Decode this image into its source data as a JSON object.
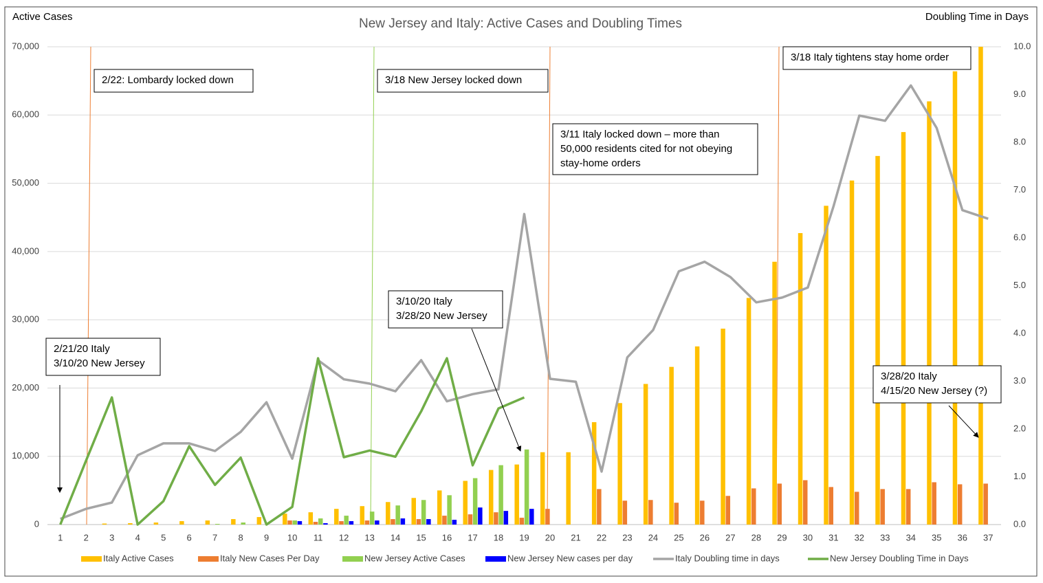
{
  "chart_data": {
    "type": "combo",
    "title": "New Jersey and Italy: Active Cases and Doubling Times",
    "y_label": "Active Cases",
    "y2_label": "Doubling Time in Days",
    "categories": [
      1,
      2,
      3,
      4,
      5,
      6,
      7,
      8,
      9,
      10,
      11,
      12,
      13,
      14,
      15,
      16,
      17,
      18,
      19,
      20,
      21,
      22,
      23,
      24,
      25,
      26,
      27,
      28,
      29,
      30,
      31,
      32,
      33,
      34,
      35,
      36,
      37
    ],
    "series": [
      {
        "name": "Italy Active Cases",
        "type": "bar",
        "color": "#FFC000",
        "values": [
          0,
          0,
          150,
          200,
          300,
          500,
          600,
          800,
          1100,
          1600,
          1800,
          2300,
          2700,
          3300,
          3900,
          5000,
          6400,
          8000,
          8800,
          10600,
          10600,
          15000,
          17800,
          20600,
          23100,
          26100,
          28700,
          33200,
          38500,
          42700,
          46700,
          50400,
          54000,
          57500,
          62000,
          66400,
          70000
        ]
      },
      {
        "name": "Italy New Cases Per Day",
        "type": "bar",
        "color": "#ED7D31",
        "values": [
          0,
          0,
          0,
          0,
          0,
          0,
          0,
          0,
          0,
          600,
          400,
          500,
          600,
          800,
          800,
          1300,
          1500,
          1800,
          1000,
          2300,
          0,
          5200,
          3500,
          3600,
          3200,
          3500,
          4200,
          5300,
          6000,
          6500,
          5500,
          4800,
          5200,
          5200,
          6200,
          5900,
          6000
        ]
      },
      {
        "name": "New Jersey Active Cases",
        "type": "bar",
        "color": "#92D050",
        "values": [
          0,
          0,
          0,
          0,
          0,
          0,
          100,
          300,
          0,
          600,
          900,
          1300,
          1900,
          2800,
          3600,
          4300,
          6800,
          8700,
          11000,
          null,
          null,
          null,
          null,
          null,
          null,
          null,
          null,
          null,
          null,
          null,
          null,
          null,
          null,
          null,
          null,
          null,
          null
        ]
      },
      {
        "name": "New Jersey New cases per day",
        "type": "bar",
        "color": "#0000FF",
        "values": [
          0,
          0,
          0,
          0,
          0,
          0,
          0,
          0,
          0,
          500,
          200,
          500,
          600,
          900,
          800,
          700,
          2500,
          2000,
          2300,
          null,
          null,
          null,
          null,
          null,
          null,
          null,
          null,
          null,
          null,
          null,
          null,
          null,
          null,
          null,
          null,
          null,
          null
        ]
      },
      {
        "name": "Italy Doubling time in days",
        "type": "line",
        "axis": "y2",
        "color": "#A5A5A5",
        "values": [
          0.12,
          0.33,
          0.46,
          1.45,
          1.7,
          1.7,
          1.54,
          1.94,
          2.56,
          1.38,
          3.44,
          3.04,
          2.95,
          2.79,
          3.44,
          2.58,
          2.73,
          2.83,
          6.5,
          3.05,
          2.99,
          1.11,
          3.5,
          4.07,
          5.3,
          5.5,
          5.18,
          4.65,
          4.75,
          4.96,
          6.66,
          8.56,
          8.45,
          9.19,
          8.3,
          6.58,
          6.4
        ]
      },
      {
        "name": "New Jersey Doubling Time in Days",
        "type": "line",
        "axis": "y2",
        "color": "#70AD47",
        "values": [
          0,
          1.34,
          2.66,
          0,
          0.49,
          1.64,
          0.83,
          1.4,
          0,
          0.37,
          3.48,
          1.41,
          1.55,
          1.42,
          2.37,
          3.48,
          1.24,
          2.43,
          2.66,
          null,
          null,
          null,
          null,
          null,
          null,
          null,
          null,
          null,
          null,
          null,
          null,
          null,
          null,
          null,
          null,
          null,
          null
        ]
      }
    ],
    "ylim": [
      0,
      70000
    ],
    "yticks": [
      0,
      {
        "value": 10000,
        "label": "10,000"
      },
      {
        "value": 20000,
        "label": "20,000"
      },
      {
        "value": 30000,
        "label": "30,000"
      },
      {
        "value": 40000,
        "label": "40,000"
      },
      {
        "value": 50000,
        "label": "50,000"
      },
      {
        "value": 60000,
        "label": "60,000"
      },
      {
        "value": 70000,
        "label": "70,000"
      }
    ],
    "y2lim": [
      0,
      10
    ],
    "y2ticks": [
      {
        "value": 0,
        "label": "0.0"
      },
      {
        "value": 1,
        "label": "1.0"
      },
      {
        "value": 2,
        "label": "2.0"
      },
      {
        "value": 3,
        "label": "3.0"
      },
      {
        "value": 4,
        "label": "4.0"
      },
      {
        "value": 5,
        "label": "5.0"
      },
      {
        "value": 6,
        "label": "6.0"
      },
      {
        "value": 7,
        "label": "7.0"
      },
      {
        "value": 8,
        "label": "8.0"
      },
      {
        "value": 9,
        "label": "9.0"
      },
      {
        "value": 10,
        "label": "10.0"
      }
    ],
    "grid": true,
    "legend": "bottom",
    "annotations": [
      [
        "2/22: Lombardy locked down"
      ],
      [
        "3/18 New Jersey locked down"
      ],
      [
        "3/18 Italy tightens stay home order"
      ],
      [
        "3/11 Italy locked down – more than",
        "50,000 residents cited for not obeying",
        "stay-home orders"
      ],
      [
        "3/10/20 Italy",
        "3/28/20 New Jersey"
      ],
      [
        "2/21/20 Italy",
        "3/10/20 New Jersey"
      ],
      [
        "3/28/20 Italy",
        "4/15/20 New Jersey (?)"
      ]
    ]
  }
}
